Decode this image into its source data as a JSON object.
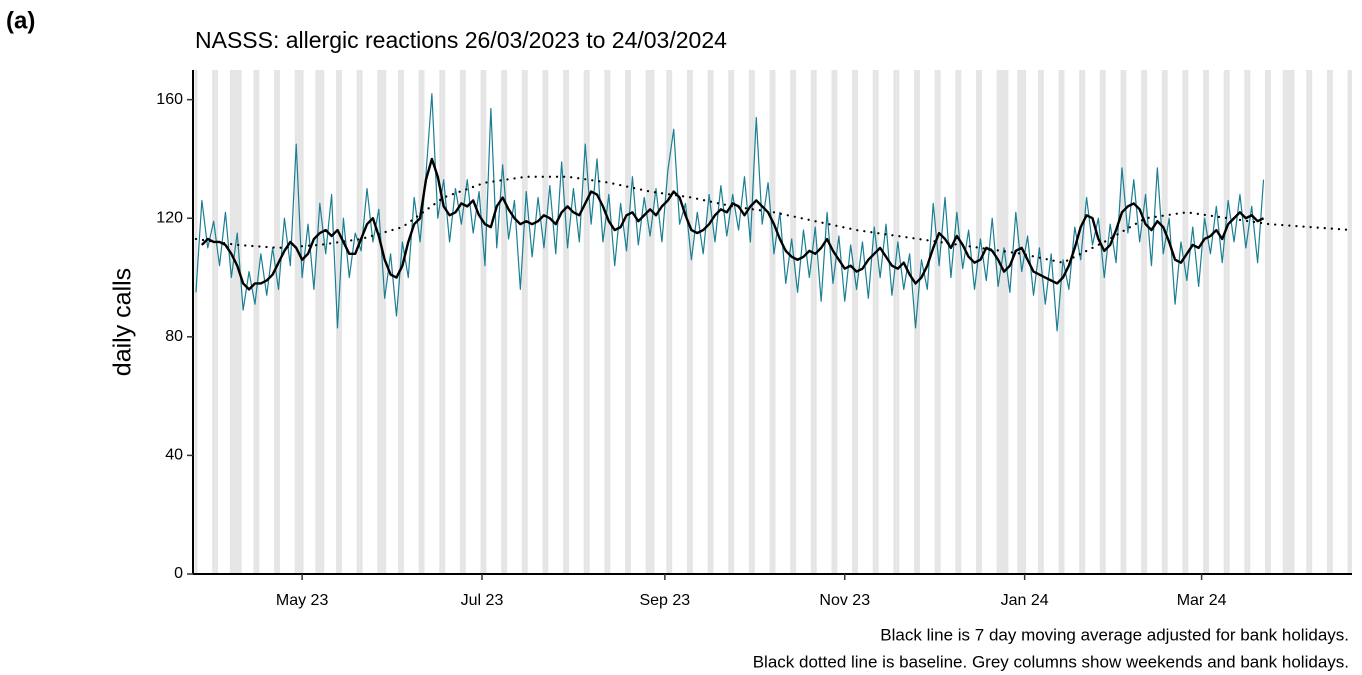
{
  "chart_data": {
    "type": "line",
    "panel_label": "(a)",
    "title": "NASSS: allergic reactions 26/03/2023 to 24/03/2024",
    "y_label": "daily calls",
    "captions": [
      "Black line is 7 day moving average adjusted for bank holidays.",
      "Black dotted line is baseline. Grey columns show weekends and bank holidays."
    ],
    "xlim": [
      -1,
      392
    ],
    "xticks": [
      {
        "value": 36,
        "label": "May 23"
      },
      {
        "value": 97,
        "label": "Jul 23"
      },
      {
        "value": 159,
        "label": "Sep 23"
      },
      {
        "value": 220,
        "label": "Nov 23"
      },
      {
        "value": 281,
        "label": "Jan 24"
      },
      {
        "value": 341,
        "label": "Mar 24"
      }
    ],
    "ylim": [
      0,
      170
    ],
    "yticks": [
      0,
      40,
      80,
      120,
      160
    ],
    "shade_color": "#e5e5e5",
    "shaded_days": [
      0,
      6,
      7,
      12,
      13,
      14,
      15,
      20,
      21,
      27,
      28,
      34,
      35,
      36,
      41,
      42,
      43,
      48,
      49,
      55,
      56,
      62,
      63,
      64,
      69,
      70,
      76,
      77,
      83,
      84,
      90,
      91,
      97,
      98,
      104,
      105,
      111,
      112,
      118,
      119,
      125,
      126,
      132,
      133,
      139,
      140,
      146,
      147,
      153,
      154,
      155,
      160,
      161,
      167,
      168,
      174,
      175,
      181,
      182,
      188,
      189,
      195,
      196,
      202,
      203,
      209,
      210,
      216,
      217,
      223,
      224,
      230,
      231,
      237,
      238,
      244,
      245,
      251,
      252,
      258,
      259,
      265,
      266,
      272,
      273,
      274,
      275,
      279,
      280,
      281,
      286,
      287,
      293,
      294,
      300,
      301,
      307,
      308,
      314,
      315,
      321,
      322,
      328,
      329,
      335,
      336,
      342,
      343,
      349,
      350,
      356,
      357,
      363,
      364,
      369,
      370,
      371,
      372,
      377,
      378,
      384,
      385,
      391,
      392
    ],
    "x": [
      0,
      2,
      4,
      6,
      8,
      10,
      12,
      14,
      16,
      18,
      20,
      22,
      24,
      26,
      28,
      30,
      32,
      34,
      36,
      38,
      40,
      42,
      44,
      46,
      48,
      50,
      52,
      54,
      56,
      58,
      60,
      62,
      64,
      66,
      68,
      70,
      72,
      74,
      76,
      78,
      80,
      82,
      84,
      86,
      88,
      90,
      92,
      94,
      96,
      98,
      100,
      102,
      104,
      106,
      108,
      110,
      112,
      114,
      116,
      118,
      120,
      122,
      124,
      126,
      128,
      130,
      132,
      134,
      136,
      138,
      140,
      142,
      144,
      146,
      148,
      150,
      152,
      154,
      156,
      158,
      160,
      162,
      164,
      166,
      168,
      170,
      172,
      174,
      176,
      178,
      180,
      182,
      184,
      186,
      188,
      190,
      192,
      194,
      196,
      198,
      200,
      202,
      204,
      206,
      208,
      210,
      212,
      214,
      216,
      218,
      220,
      222,
      224,
      226,
      228,
      230,
      232,
      234,
      236,
      238,
      240,
      242,
      244,
      246,
      248,
      250,
      252,
      254,
      256,
      258,
      260,
      262,
      264,
      266,
      268,
      270,
      272,
      274,
      276,
      278,
      280,
      282,
      284,
      286,
      288,
      290,
      292,
      294,
      296,
      298,
      300,
      302,
      304,
      306,
      308,
      310,
      312,
      314,
      316,
      318,
      320,
      322,
      324,
      326,
      328,
      330,
      332,
      334,
      336,
      338,
      340,
      342,
      344,
      346,
      348,
      350,
      352,
      354,
      356,
      358,
      360,
      362
    ],
    "series": [
      {
        "color": "#1a7f94",
        "width": 1.2,
        "values": [
          95,
          126,
          110,
          119,
          104,
          122,
          100,
          115,
          89,
          102,
          91,
          108,
          94,
          110,
          96,
          120,
          104,
          145,
          100,
          118,
          96,
          125,
          108,
          128,
          83,
          120,
          100,
          115,
          109,
          130,
          112,
          123,
          93,
          108,
          87,
          112,
          100,
          127,
          112,
          135,
          162,
          120,
          133,
          112,
          130,
          118,
          133,
          115,
          129,
          104,
          157,
          110,
          138,
          113,
          126,
          96,
          129,
          107,
          127,
          110,
          131,
          108,
          139,
          110,
          130,
          112,
          145,
          118,
          140,
          112,
          128,
          104,
          125,
          109,
          134,
          111,
          127,
          114,
          130,
          112,
          136,
          150,
          118,
          125,
          106,
          122,
          108,
          128,
          112,
          131,
          114,
          128,
          116,
          134,
          112,
          154,
          118,
          132,
          108,
          122,
          98,
          113,
          95,
          116,
          100,
          117,
          92,
          122,
          98,
          114,
          92,
          111,
          96,
          112,
          93,
          117,
          100,
          118,
          94,
          112,
          96,
          108,
          83,
          106,
          96,
          125,
          104,
          127,
          100,
          122,
          103,
          116,
          96,
          113,
          99,
          120,
          97,
          110,
          95,
          122,
          102,
          114,
          94,
          110,
          91,
          108,
          82,
          106,
          96,
          117,
          106,
          127,
          111,
          120,
          100,
          118,
          105,
          137,
          115,
          133,
          112,
          128,
          104,
          137,
          108,
          120,
          91,
          112,
          99,
          117,
          97,
          120,
          108,
          124,
          105,
          126,
          112,
          128,
          110,
          124,
          105,
          133
        ]
      },
      {
        "color": "#000000",
        "width": 2.4,
        "values": [
          null,
          111,
          113,
          112,
          112,
          111,
          108,
          104,
          98,
          96,
          98,
          98,
          99,
          101,
          105,
          109,
          112,
          110,
          106,
          108,
          113,
          115,
          116,
          114,
          116,
          112,
          108,
          108,
          113,
          118,
          120,
          114,
          106,
          101,
          100,
          104,
          112,
          118,
          120,
          133,
          140,
          134,
          124,
          121,
          122,
          125,
          124,
          126,
          121,
          118,
          117,
          124,
          127,
          123,
          120,
          118,
          119,
          118,
          119,
          121,
          120,
          118,
          122,
          124,
          122,
          121,
          125,
          129,
          128,
          124,
          119,
          116,
          117,
          121,
          122,
          119,
          121,
          123,
          121,
          124,
          126,
          129,
          127,
          121,
          116,
          115,
          116,
          118,
          121,
          123,
          122,
          125,
          124,
          121,
          124,
          126,
          124,
          122,
          118,
          113,
          109,
          107,
          106,
          107,
          109,
          108,
          110,
          113,
          109,
          106,
          103,
          104,
          102,
          103,
          106,
          108,
          110,
          107,
          104,
          103,
          105,
          101,
          98,
          100,
          104,
          110,
          115,
          113,
          110,
          114,
          111,
          107,
          105,
          106,
          110,
          109,
          106,
          102,
          104,
          109,
          110,
          106,
          102,
          101,
          100,
          99,
          98,
          100,
          104,
          110,
          117,
          121,
          120,
          113,
          109,
          111,
          116,
          122,
          124,
          125,
          123,
          118,
          116,
          119,
          117,
          112,
          106,
          105,
          108,
          111,
          110,
          113,
          114,
          116,
          113,
          118,
          120,
          122,
          120,
          121,
          119,
          120
        ]
      },
      {
        "color": "#000000",
        "width": 2.2,
        "dash": "dotted",
        "x": [
          0,
          14,
          28,
          42,
          56,
          70,
          84,
          98,
          112,
          126,
          140,
          154,
          168,
          182,
          196,
          210,
          224,
          238,
          252,
          266,
          280,
          294,
          308,
          322,
          336,
          350,
          364,
          378,
          392
        ],
        "values": [
          113,
          111,
          110,
          111,
          113,
          117,
          127,
          132,
          134,
          134,
          132,
          129,
          127,
          124,
          122,
          119,
          116,
          114,
          112,
          110,
          108,
          105,
          112,
          120,
          122,
          120,
          118,
          117,
          116
        ]
      }
    ]
  }
}
